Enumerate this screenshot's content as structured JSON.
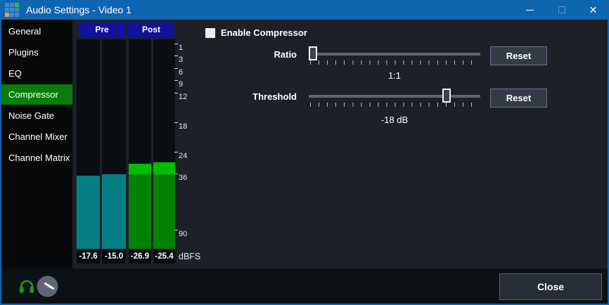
{
  "window": {
    "title": "Audio Settings - Video 1",
    "controls": {
      "minimize": "minimize",
      "maximize": "maximize",
      "close": "✕"
    }
  },
  "sidebar": {
    "items": [
      {
        "label": "General",
        "selected": false
      },
      {
        "label": "Plugins",
        "selected": false
      },
      {
        "label": "EQ",
        "selected": false
      },
      {
        "label": "Compressor",
        "selected": true
      },
      {
        "label": "Noise Gate",
        "selected": false
      },
      {
        "label": "Channel Mixer",
        "selected": false
      },
      {
        "label": "Channel Matrix",
        "selected": false
      }
    ]
  },
  "meters": {
    "groups": [
      {
        "label": "Pre"
      },
      {
        "label": "Post"
      }
    ],
    "channels": [
      {
        "group": "Pre",
        "value": "-17.6",
        "fill_pct": 34.9,
        "peak_pct": 0,
        "color_key": "teal"
      },
      {
        "group": "Pre",
        "value": "-15.0",
        "fill_pct": 35.6,
        "peak_pct": 0,
        "color_key": "teal"
      },
      {
        "group": "Post",
        "value": "-26.9",
        "fill_pct": 40.6,
        "peak_pct": 5.0,
        "color_key": "green"
      },
      {
        "group": "Post",
        "value": "-25.4",
        "fill_pct": 41.3,
        "peak_pct": 5.7,
        "color_key": "green"
      }
    ],
    "scale_labels": [
      "1",
      "3",
      "6",
      "9",
      "12",
      "18",
      "24",
      "36",
      "90"
    ],
    "unit": "dBFS"
  },
  "compressor": {
    "enable_label": "Enable Compressor",
    "enabled": false,
    "ratio": {
      "label": "Ratio",
      "value": "1:1",
      "value_pct": 0,
      "reset_label": "Reset"
    },
    "threshold": {
      "label": "Threshold",
      "value": "-18 dB",
      "value_pct": 82,
      "reset_label": "Reset"
    }
  },
  "footer": {
    "close_label": "Close"
  },
  "colors": {
    "titlebar": "#1065b1",
    "selected_green": "#087d07",
    "meter_header_blue": "#12129c",
    "meter_teal": "#057f84",
    "meter_green": "#028202",
    "meter_green_bright": "#02bd02"
  }
}
